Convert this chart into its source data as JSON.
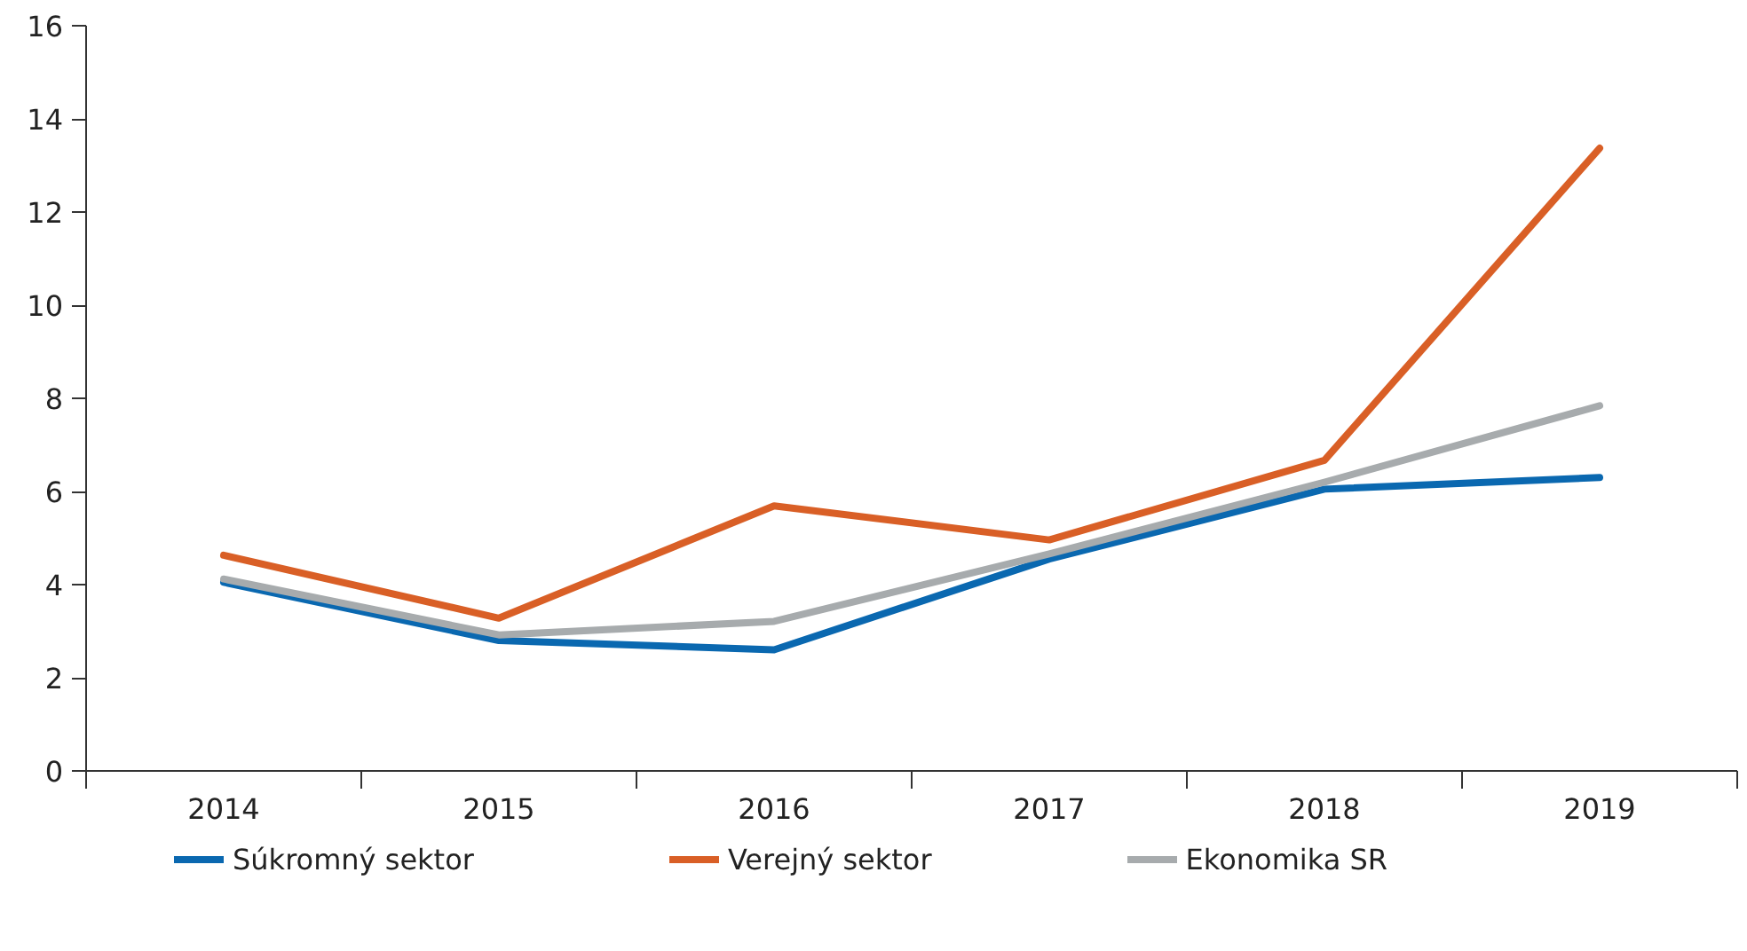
{
  "chart_data": {
    "type": "line",
    "categories": [
      "2014",
      "2015",
      "2016",
      "2017",
      "2018",
      "2019"
    ],
    "series": [
      {
        "name": "Súkromný sektor",
        "color": "#0a68b0",
        "values": [
          4.05,
          2.8,
          2.6,
          4.55,
          6.05,
          6.3
        ]
      },
      {
        "name": "Verejný sektor",
        "color": "#d95f26",
        "values": [
          4.63,
          3.28,
          5.69,
          4.96,
          6.67,
          13.37
        ]
      },
      {
        "name": "Ekonomika SR",
        "color": "#a7abad",
        "values": [
          4.12,
          2.92,
          3.21,
          4.66,
          6.2,
          7.84
        ]
      }
    ],
    "ylim": [
      0,
      16
    ],
    "yticks": [
      0,
      2,
      4,
      6,
      8,
      10,
      12,
      14,
      16
    ],
    "grid": false,
    "legend": "bottom",
    "marker": "none",
    "line_style": "solid"
  }
}
